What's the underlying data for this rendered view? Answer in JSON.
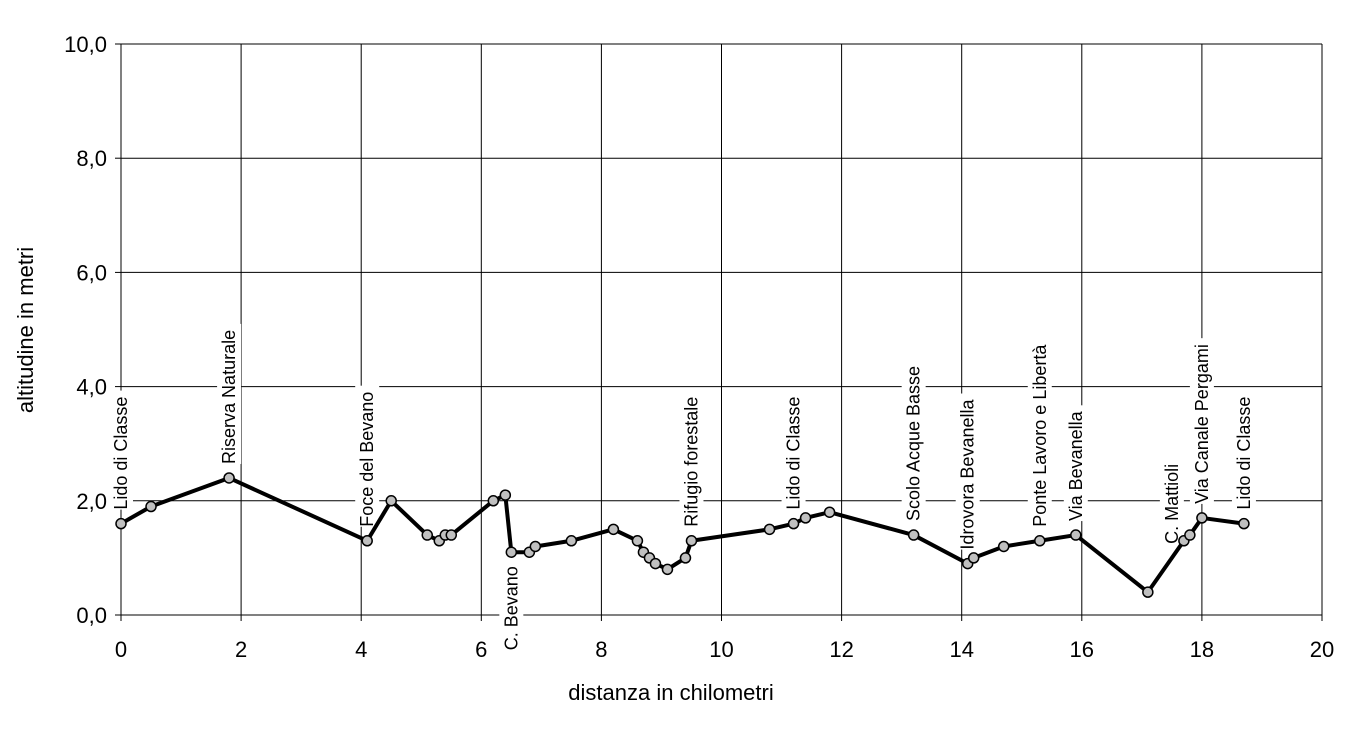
{
  "chart_data": {
    "type": "line",
    "xlabel": "distanza in chilometri",
    "ylabel": "altitudine  in metri",
    "xlim": [
      0,
      20
    ],
    "ylim": [
      0,
      10
    ],
    "xticks": [
      "0",
      "2",
      "4",
      "6",
      "8",
      "10",
      "12",
      "14",
      "16",
      "18",
      "20"
    ],
    "yticks": [
      "0,0",
      "2,0",
      "4,0",
      "6,0",
      "8,0",
      "10,0"
    ],
    "grid": true,
    "series": [
      {
        "line_color": "#000000",
        "marker_color": "#c0c0c0",
        "points": [
          {
            "x": 0.0,
            "y": 1.6
          },
          {
            "x": 0.5,
            "y": 1.9
          },
          {
            "x": 1.8,
            "y": 2.4
          },
          {
            "x": 4.1,
            "y": 1.3
          },
          {
            "x": 4.5,
            "y": 2.0
          },
          {
            "x": 5.1,
            "y": 1.4
          },
          {
            "x": 5.3,
            "y": 1.3
          },
          {
            "x": 5.4,
            "y": 1.4
          },
          {
            "x": 5.5,
            "y": 1.4
          },
          {
            "x": 6.2,
            "y": 2.0
          },
          {
            "x": 6.4,
            "y": 2.1
          },
          {
            "x": 6.5,
            "y": 1.1
          },
          {
            "x": 6.8,
            "y": 1.1
          },
          {
            "x": 6.9,
            "y": 1.2
          },
          {
            "x": 7.5,
            "y": 1.3
          },
          {
            "x": 8.2,
            "y": 1.5
          },
          {
            "x": 8.6,
            "y": 1.3
          },
          {
            "x": 8.7,
            "y": 1.1
          },
          {
            "x": 8.8,
            "y": 1.0
          },
          {
            "x": 8.9,
            "y": 0.9
          },
          {
            "x": 9.1,
            "y": 0.8
          },
          {
            "x": 9.4,
            "y": 1.0
          },
          {
            "x": 9.5,
            "y": 1.3
          },
          {
            "x": 10.8,
            "y": 1.5
          },
          {
            "x": 11.2,
            "y": 1.6
          },
          {
            "x": 11.4,
            "y": 1.7
          },
          {
            "x": 11.8,
            "y": 1.8
          },
          {
            "x": 13.2,
            "y": 1.4
          },
          {
            "x": 14.1,
            "y": 0.9
          },
          {
            "x": 14.2,
            "y": 1.0
          },
          {
            "x": 14.7,
            "y": 1.2
          },
          {
            "x": 15.3,
            "y": 1.3
          },
          {
            "x": 15.9,
            "y": 1.4
          },
          {
            "x": 17.1,
            "y": 0.4
          },
          {
            "x": 17.7,
            "y": 1.3
          },
          {
            "x": 17.8,
            "y": 1.4
          },
          {
            "x": 18.0,
            "y": 1.7
          },
          {
            "x": 18.7,
            "y": 1.6
          }
        ]
      }
    ],
    "annotations": [
      {
        "x": 0.0,
        "y": 1.6,
        "text": "Lido di Classe",
        "side": "above"
      },
      {
        "x": 1.8,
        "y": 2.4,
        "text": "Riserva Naturale",
        "side": "above"
      },
      {
        "x": 4.1,
        "y": 1.3,
        "text": "Foce del Bevano",
        "side": "above"
      },
      {
        "x": 6.5,
        "y": 1.1,
        "text": "C. Bevano",
        "side": "below"
      },
      {
        "x": 9.5,
        "y": 1.3,
        "text": "Rifugio forestale",
        "side": "above"
      },
      {
        "x": 11.2,
        "y": 1.6,
        "text": "Lido di Classe",
        "side": "above"
      },
      {
        "x": 13.2,
        "y": 1.4,
        "text": "Scolo Acque Basse",
        "side": "above"
      },
      {
        "x": 14.1,
        "y": 0.9,
        "text": "Idrovora Bevanella",
        "side": "above"
      },
      {
        "x": 15.3,
        "y": 1.3,
        "text": "Ponte Lavoro e Libertà",
        "side": "above"
      },
      {
        "x": 15.9,
        "y": 1.4,
        "text": "Via Bevanella",
        "side": "above"
      },
      {
        "x": 17.5,
        "y": 1.0,
        "text": "C. Mattioli",
        "side": "above"
      },
      {
        "x": 18.0,
        "y": 1.7,
        "text": "Via Canale Pergami",
        "side": "above"
      },
      {
        "x": 18.7,
        "y": 1.6,
        "text": "Lido di Classe",
        "side": "above"
      }
    ]
  }
}
